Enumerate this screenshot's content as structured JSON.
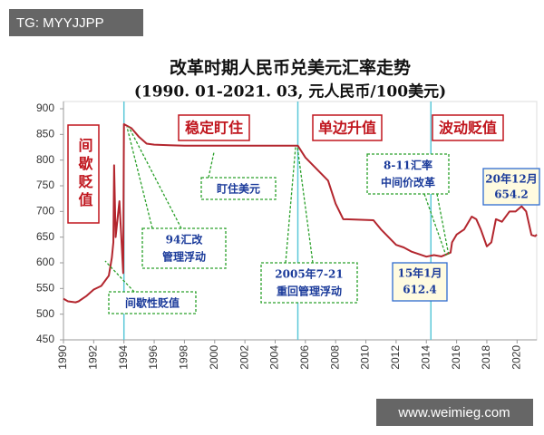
{
  "watermark": "TG: MYYJJPP",
  "footer": "www.weimieg.com",
  "chart_data": {
    "type": "line",
    "title": "改革时期人民币兑美元汇率走势",
    "subtitle": "(1990. 01-2021. 03, 元人民币/100美元)",
    "x": [
      1990.0,
      1990.3,
      1990.8,
      1991.0,
      1991.5,
      1992.0,
      1992.5,
      1993.0,
      1993.2,
      1993.3,
      1993.35,
      1993.45,
      1993.7,
      1993.95,
      1994.0,
      1994.5,
      1995.0,
      1995.5,
      1996.0,
      1997.0,
      1998.0,
      2000.0,
      2005.5,
      2006.0,
      2007.0,
      2007.5,
      2008.0,
      2008.5,
      2010.5,
      2011.0,
      2012.0,
      2012.5,
      2013.0,
      2014.0,
      2014.5,
      2015.0,
      2015.6,
      2015.7,
      2016.0,
      2016.5,
      2017.0,
      2017.3,
      2017.6,
      2018.0,
      2018.3,
      2018.6,
      2019.0,
      2019.5,
      2019.9,
      2020.3,
      2020.6,
      2020.95,
      2021.2,
      2021.3
    ],
    "series": [
      {
        "color": "#b3262e",
        "values": [
          530,
          525,
          523,
          525,
          535,
          548,
          555,
          575,
          610,
          640,
          790,
          650,
          720,
          580,
          870,
          862,
          845,
          832,
          830,
          829,
          828,
          828,
          828,
          805,
          775,
          760,
          715,
          685,
          683,
          665,
          635,
          630,
          622,
          612,
          615,
          612.4,
          620,
          640,
          655,
          665,
          690,
          685,
          665,
          632,
          640,
          685,
          680,
          700,
          700,
          710,
          700,
          654.2,
          652,
          655
        ]
      }
    ],
    "xlim": [
      1990,
      2021.3
    ],
    "xticks": [
      1990,
      1992,
      1994,
      1996,
      1998,
      2000,
      2002,
      2004,
      2006,
      2008,
      2010,
      2012,
      2014,
      2016,
      2018,
      2020
    ],
    "ylim": [
      450,
      900
    ],
    "yticks": [
      450,
      500,
      550,
      600,
      650,
      700,
      750,
      800,
      850,
      900
    ],
    "vlines": [
      1994,
      2005.5,
      2014.3
    ],
    "phases": [
      "间歇贬值",
      "稳定盯住",
      "单边升值",
      "波动贬值"
    ],
    "annotations": [
      {
        "lines": [
          "盯住美元"
        ]
      },
      {
        "lines": [
          "94汇改",
          "管理浮动"
        ]
      },
      {
        "lines": [
          "间歇性贬值"
        ]
      },
      {
        "lines": [
          "2005年7-21",
          "重回管理浮动"
        ]
      },
      {
        "lines": [
          "8-11汇率",
          "中间价改革"
        ]
      },
      {
        "lines": [
          "15年1月",
          "612.4"
        ]
      },
      {
        "lines": [
          "20年12月",
          "654.2"
        ]
      }
    ]
  }
}
